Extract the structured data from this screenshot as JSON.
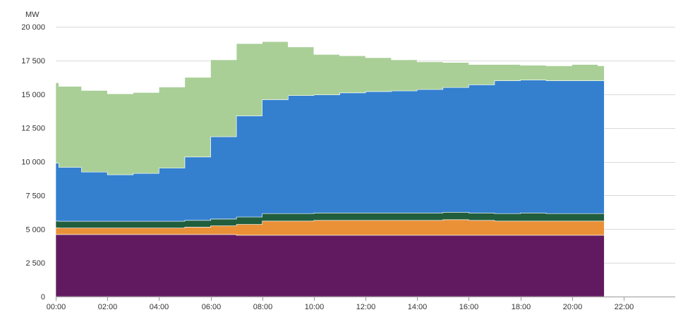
{
  "chart_data": {
    "type": "area",
    "stacked": true,
    "step": true,
    "ylabel": "MW",
    "ylim": [
      0,
      20000
    ],
    "y_ticks": [
      0,
      2500,
      5000,
      7500,
      10000,
      12500,
      15000,
      17500,
      20000
    ],
    "y_tick_labels": [
      "0",
      "2 500",
      "5 000",
      "7 500",
      "10 000",
      "12 500",
      "15 000",
      "17 500",
      "20 000"
    ],
    "xlim": [
      "00:00",
      "24:00"
    ],
    "x_ticks": [
      "00:00",
      "02:00",
      "04:00",
      "06:00",
      "08:00",
      "10:00",
      "12:00",
      "14:00",
      "16:00",
      "18:00",
      "20:00",
      "22:00"
    ],
    "grid": true,
    "legend": "none",
    "x": [
      "00:00",
      "00:07",
      "01:00",
      "02:00",
      "03:00",
      "04:00",
      "05:00",
      "06:00",
      "07:00",
      "08:00",
      "09:00",
      "10:00",
      "11:00",
      "12:00",
      "13:00",
      "14:00",
      "15:00",
      "16:00",
      "17:00",
      "18:00",
      "19:00",
      "20:00",
      "21:00",
      "21:15"
    ],
    "series": [
      {
        "color": "#611a5f",
        "values": [
          4600,
          4600,
          4600,
          4600,
          4600,
          4600,
          4600,
          4600,
          4550,
          4550,
          4550,
          4550,
          4550,
          4550,
          4550,
          4550,
          4550,
          4550,
          4550,
          4550,
          4550,
          4550,
          4550,
          4550
        ]
      },
      {
        "color": "#ea9138",
        "values": [
          500,
          480,
          480,
          480,
          480,
          480,
          550,
          650,
          800,
          1050,
          1050,
          1100,
          1100,
          1100,
          1100,
          1100,
          1150,
          1100,
          1050,
          1050,
          1050,
          1050,
          1050,
          1050
        ]
      },
      {
        "color": "#215e3e",
        "values": [
          500,
          500,
          500,
          500,
          500,
          500,
          500,
          500,
          550,
          550,
          550,
          550,
          550,
          550,
          550,
          550,
          550,
          550,
          550,
          600,
          550,
          550,
          550,
          550
        ]
      },
      {
        "color": "#3480cf",
        "values": [
          4300,
          4000,
          3650,
          3450,
          3550,
          3950,
          4700,
          6100,
          7500,
          8450,
          8750,
          8750,
          8900,
          9000,
          9050,
          9150,
          9250,
          9500,
          9850,
          9850,
          9850,
          9850,
          9850,
          9850
        ]
      },
      {
        "color": "#a9cf97",
        "values": [
          5950,
          6000,
          6050,
          6000,
          6000,
          6000,
          5900,
          5700,
          5350,
          4300,
          3600,
          3000,
          2750,
          2500,
          2300,
          2050,
          1850,
          1500,
          1200,
          1100,
          1100,
          1200,
          1100,
          1100
        ]
      }
    ]
  }
}
